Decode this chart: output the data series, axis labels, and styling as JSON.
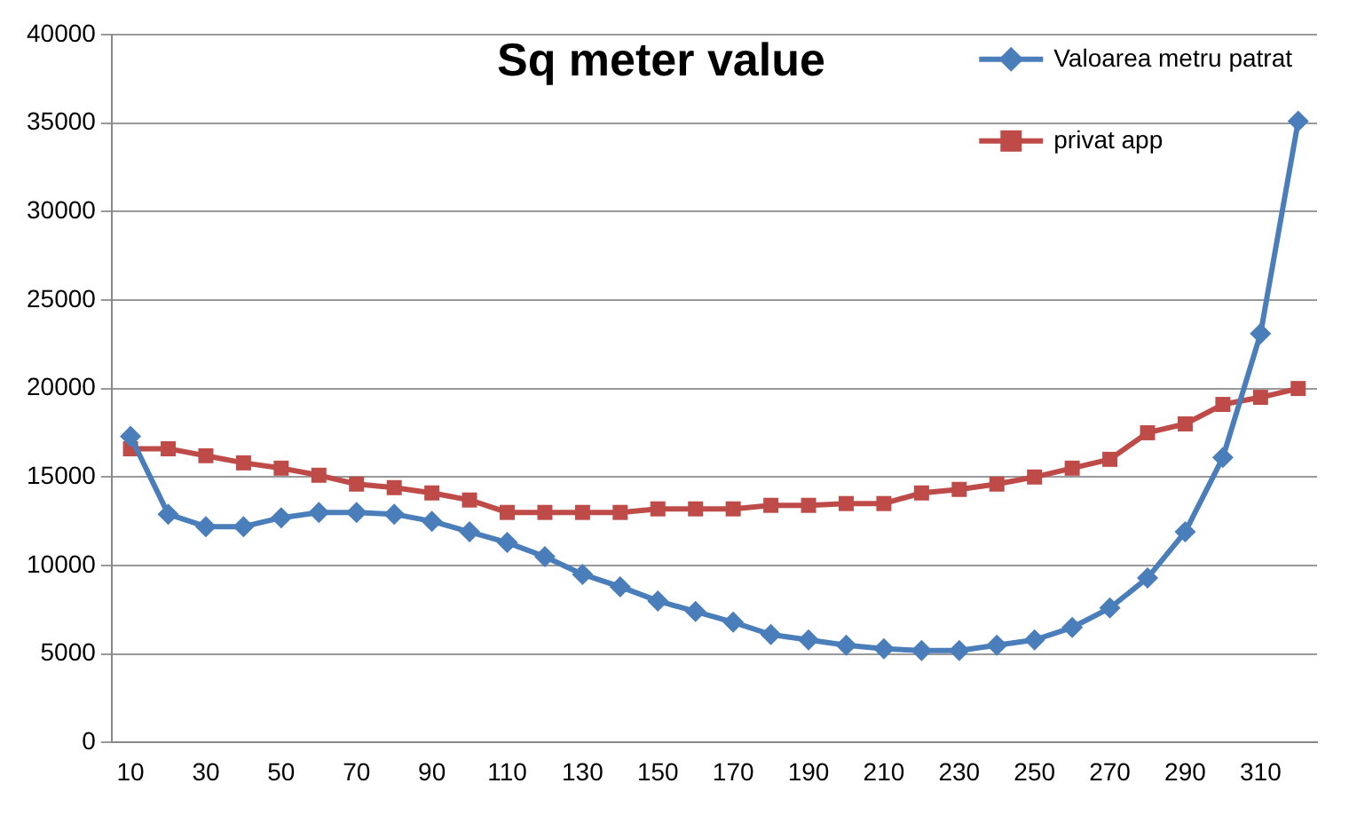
{
  "chart_data": {
    "type": "line",
    "title": "Sq meter value",
    "categories": [
      "10",
      null,
      "30",
      null,
      "50",
      null,
      "70",
      null,
      "90",
      null,
      "110",
      null,
      "130",
      null,
      "150",
      null,
      "170",
      null,
      "190",
      null,
      "210",
      null,
      "230",
      null,
      "250",
      null,
      "270",
      null,
      "290",
      null,
      "310",
      null
    ],
    "series": [
      {
        "name": "Valoarea metru patrat",
        "color": "#4a7ebb",
        "marker": "diamond",
        "values": [
          17300,
          12900,
          12200,
          12200,
          12700,
          13000,
          13000,
          12900,
          12500,
          11900,
          11300,
          10500,
          9500,
          8800,
          8000,
          7400,
          6800,
          6100,
          5800,
          5500,
          5300,
          5200,
          5200,
          5500,
          5800,
          6500,
          7600,
          9300,
          11900,
          16100,
          23100,
          35100
        ]
      },
      {
        "name": "privat app",
        "color": "#be4b48",
        "marker": "square",
        "values": [
          16600,
          16600,
          16200,
          15800,
          15500,
          15100,
          14600,
          14400,
          14100,
          13700,
          13000,
          13000,
          13000,
          13000,
          13200,
          13200,
          13200,
          13400,
          13400,
          13500,
          13500,
          14100,
          14300,
          14600,
          15000,
          15500,
          16000,
          17500,
          18000,
          19100,
          19500,
          20000
        ]
      }
    ],
    "ylim": [
      0,
      40000
    ],
    "yticks": [
      0,
      5000,
      10000,
      15000,
      20000,
      25000,
      30000,
      35000,
      40000
    ],
    "grid": "y",
    "legend": "top right"
  }
}
